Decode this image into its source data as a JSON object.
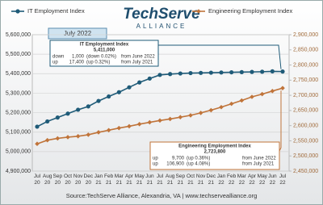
{
  "chart_data": {
    "type": "line",
    "logo": {
      "name": "TechServe",
      "tagline": "ALLIANCE"
    },
    "date_label": "July 2022",
    "source": "Source:TechServe Alliance, Alexandria, VA | www.techservealliance.org",
    "categories": [
      "Jul 20",
      "Aug 20",
      "Sep 20",
      "Oct 20",
      "Nov 20",
      "Dec 20",
      "Jan 21",
      "Feb 21",
      "Mar 21",
      "Apr 21",
      "May 21",
      "Jun 21",
      "Jul 21",
      "Aug 21",
      "Sep 21",
      "Oct 21",
      "Nov 21",
      "Dec 21",
      "Jan 22",
      "Feb 22",
      "Mar 22",
      "Apr 22",
      "May 22",
      "Jun 22",
      "Jul 22"
    ],
    "ylim": [
      4900000,
      5600000
    ],
    "yticks": [
      {
        "value": 4900000,
        "label": "4,900,000"
      },
      {
        "value": 5000000,
        "label": "5,000,000"
      },
      {
        "value": 5100000,
        "label": "5,100,000"
      },
      {
        "value": 5200000,
        "label": "5,200,000"
      },
      {
        "value": 5300000,
        "label": "5,300,000"
      },
      {
        "value": 5400000,
        "label": "5,400,000"
      },
      {
        "value": 5500000,
        "label": "5,500,000"
      },
      {
        "value": 5600000,
        "label": "5,600,000"
      }
    ],
    "y2lim": [
      2450000,
      2900000
    ],
    "y2ticks": [
      {
        "value": 2450000,
        "label": "2,450,000"
      },
      {
        "value": 2500000,
        "label": "2,500,000"
      },
      {
        "value": 2550000,
        "label": "2,550,000"
      },
      {
        "value": 2600000,
        "label": "2,600,000"
      },
      {
        "value": 2650000,
        "label": "2,650,000"
      },
      {
        "value": 2700000,
        "label": "2,700,000"
      },
      {
        "value": 2750000,
        "label": "2,750,000"
      },
      {
        "value": 2800000,
        "label": "2,800,000"
      },
      {
        "value": 2850000,
        "label": "2,850,000"
      },
      {
        "value": 2900000,
        "label": "2,900,000"
      }
    ],
    "grid": true,
    "series": [
      {
        "name": "IT Employment Index",
        "color": "#1f5b78",
        "marker": "circle",
        "values": [
          5128000,
          5155000,
          5175000,
          5195000,
          5215000,
          5232000,
          5260000,
          5283000,
          5305000,
          5330000,
          5355000,
          5375000,
          5393600,
          5398000,
          5401000,
          5403000,
          5404000,
          5405000,
          5406000,
          5407000,
          5408000,
          5409000,
          5410000,
          5412000,
          5411000
        ]
      },
      {
        "name": "Engineering Employment Index",
        "color": "#c0743a",
        "marker": "diamond",
        "axis": "y2",
        "values": [
          2540000,
          2552000,
          2558000,
          2562000,
          2565000,
          2570000,
          2578000,
          2585000,
          2592000,
          2598000,
          2605000,
          2611000,
          2616900,
          2622000,
          2628000,
          2634000,
          2642000,
          2651000,
          2661000,
          2672000,
          2683000,
          2695000,
          2704000,
          2714100,
          2723800
        ]
      }
    ],
    "annotations": [
      {
        "title": "IT Employment Index",
        "value": "5,411,000",
        "rows": [
          [
            "down",
            "1,000",
            "(down 0.02%)",
            "from June 2022"
          ],
          [
            "up",
            "17,400",
            "(up 0.32%)",
            "from July 2021"
          ]
        ]
      },
      {
        "title": "Engineering Employment Index",
        "value": "2,723,800",
        "rows": [
          [
            "up",
            "9,700",
            "(up 0.36%)",
            "from June 2022"
          ],
          [
            "up",
            "106,900",
            "(up 4.08%)",
            "from July 2021"
          ]
        ]
      }
    ]
  }
}
